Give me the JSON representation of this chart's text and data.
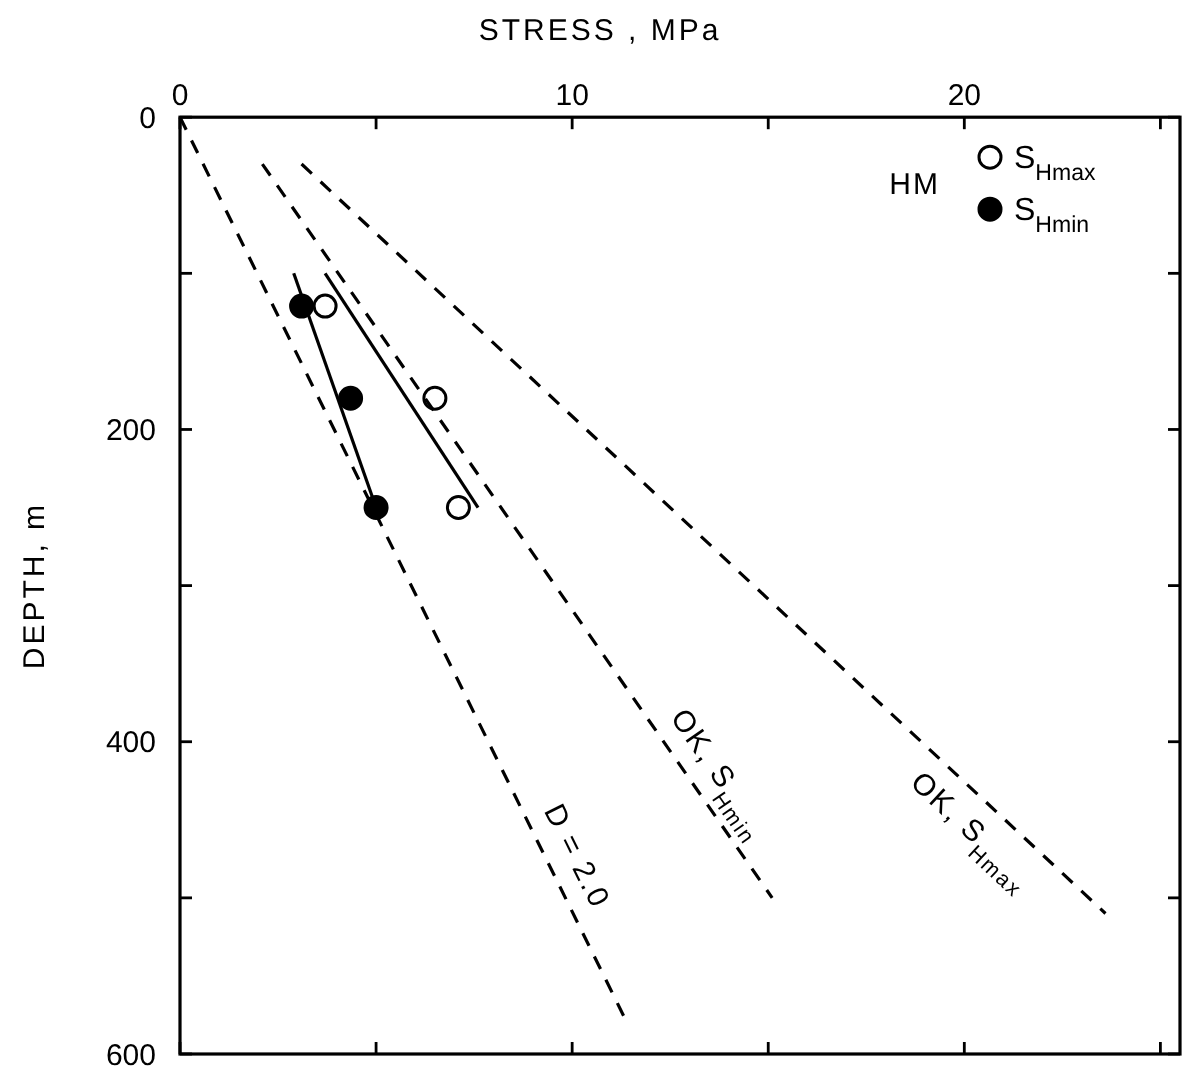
{
  "chart_data": {
    "type": "scatter",
    "xlabel": "STRESS , MPa",
    "ylabel": "DEPTH, m",
    "xlim": [
      0,
      25.5
    ],
    "xticks": [
      0,
      {
        "value": 5,
        "label": null
      },
      10,
      {
        "value": 15,
        "label": null
      },
      20,
      {
        "value": 25,
        "label": null
      }
    ],
    "ylim": [
      600,
      0
    ],
    "yticks": [
      0,
      {
        "value": 100,
        "label": null
      },
      200,
      {
        "value": 300,
        "label": null
      },
      400,
      {
        "value": 500,
        "label": null
      },
      600
    ],
    "grid": false,
    "legend": "top right",
    "series": [
      {
        "name": "S$_{Hmax}$",
        "marker": "circle",
        "color": "#ffffff",
        "x": [
          3.7,
          6.5,
          7.1
        ],
        "values": [
          121,
          180,
          250
        ]
      },
      {
        "name": "S$_{Hmin}$",
        "marker": "circle",
        "color": "#000000",
        "x": [
          3.1,
          4.35,
          5.0
        ],
        "values": [
          121,
          180,
          250
        ]
      },
      {
        "type": "line",
        "line_style": "solid",
        "color": "#000000",
        "x": [
          3.7,
          7.6
        ],
        "values": [
          100,
          250
        ]
      },
      {
        "type": "line",
        "line_style": "solid",
        "color": "#000000",
        "x": [
          2.9,
          5.0
        ],
        "values": [
          100,
          250
        ]
      },
      {
        "type": "line",
        "line_style": "dashed",
        "color": "#000000",
        "x": [
          0,
          11.4
        ],
        "values": [
          0,
          580
        ]
      },
      {
        "type": "line",
        "line_style": "dashed",
        "color": "#000000",
        "x": [
          2.1,
          15.1
        ],
        "values": [
          30,
          500
        ]
      },
      {
        "type": "line",
        "line_style": "dashed",
        "color": "#000000",
        "x": [
          3.1,
          23.6
        ],
        "values": [
          30,
          510
        ]
      }
    ],
    "annotations": [
      "HM",
      {
        "text": "OK, S$_{Hmin}$",
        "x": 13.2,
        "y": 430
      },
      {
        "text": "OK, S$_{Hmax}$",
        "x": 20.7,
        "y": 443
      },
      {
        "text": "D = 2.0",
        "x": 9.5,
        "y": 481
      }
    ]
  }
}
